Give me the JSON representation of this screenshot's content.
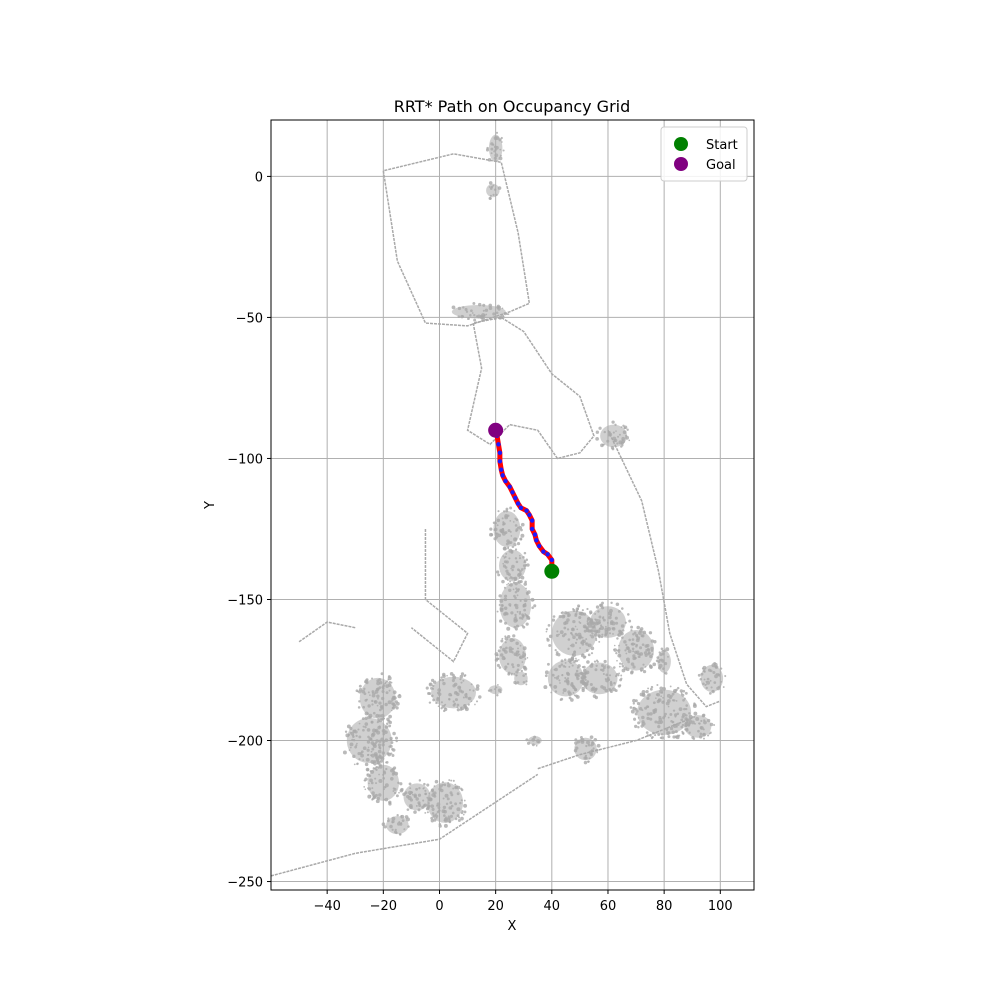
{
  "chart_data": {
    "type": "scatter",
    "title": "RRT* Path on Occupancy Grid",
    "xlabel": "X",
    "ylabel": "Y",
    "xlim": [
      -60,
      112
    ],
    "ylim": [
      -253,
      20
    ],
    "xticks": [
      -40,
      -20,
      0,
      20,
      40,
      60,
      80,
      100
    ],
    "yticks": [
      0,
      -50,
      -100,
      -150,
      -200,
      -250
    ],
    "grid": true,
    "legend_position": "top-right",
    "colors": {
      "obstacles": "#a9a9a9",
      "path_line": "#ff0000",
      "path_nodes": "#1a1aff",
      "start": "#008000",
      "goal": "#800080",
      "grid": "#b0b0b0"
    },
    "legend": [
      {
        "label": "Start",
        "color": "#008000"
      },
      {
        "label": "Goal",
        "color": "#800080"
      }
    ],
    "start": {
      "x": 40,
      "y": -140
    },
    "goal": {
      "x": 20,
      "y": -90
    },
    "path": [
      {
        "x": 40,
        "y": -140
      },
      {
        "x": 40,
        "y": -136
      },
      {
        "x": 38.5,
        "y": -134
      },
      {
        "x": 37,
        "y": -133
      },
      {
        "x": 35.5,
        "y": -131
      },
      {
        "x": 34.5,
        "y": -129
      },
      {
        "x": 34,
        "y": -127
      },
      {
        "x": 33,
        "y": -125
      },
      {
        "x": 33,
        "y": -122
      },
      {
        "x": 32,
        "y": -120
      },
      {
        "x": 31,
        "y": -118.5
      },
      {
        "x": 29,
        "y": -117.5
      },
      {
        "x": 28,
        "y": -116
      },
      {
        "x": 27,
        "y": -114
      },
      {
        "x": 26,
        "y": -112
      },
      {
        "x": 25,
        "y": -110
      },
      {
        "x": 23.5,
        "y": -108
      },
      {
        "x": 22.5,
        "y": -106
      },
      {
        "x": 22,
        "y": -104
      },
      {
        "x": 21.5,
        "y": -101
      },
      {
        "x": 21.5,
        "y": -98
      },
      {
        "x": 21,
        "y": -95
      },
      {
        "x": 20.5,
        "y": -92
      },
      {
        "x": 20,
        "y": -90
      }
    ],
    "obstacles": {
      "walls": [
        [
          [
            -20,
            2
          ],
          [
            -15,
            -30
          ],
          [
            -5,
            -52
          ],
          [
            10,
            -53
          ],
          [
            25,
            -48
          ],
          [
            32,
            -45
          ],
          [
            28,
            -20
          ],
          [
            22,
            5
          ],
          [
            5,
            8
          ],
          [
            -20,
            2
          ]
        ],
        [
          [
            12,
            -52
          ],
          [
            15,
            -68
          ],
          [
            10,
            -90
          ],
          [
            18,
            -95
          ],
          [
            25,
            -88
          ],
          [
            35,
            -90
          ],
          [
            42,
            -100
          ],
          [
            50,
            -98
          ],
          [
            55,
            -92
          ],
          [
            50,
            -78
          ],
          [
            40,
            -70
          ],
          [
            30,
            -55
          ],
          [
            22,
            -50
          ],
          [
            12,
            -52
          ]
        ],
        [
          [
            60,
            -90
          ],
          [
            72,
            -115
          ],
          [
            78,
            -140
          ],
          [
            82,
            -162
          ],
          [
            88,
            -180
          ],
          [
            95,
            -188
          ],
          [
            100,
            -186
          ]
        ],
        [
          [
            35,
            -210
          ],
          [
            50,
            -205
          ],
          [
            70,
            -200
          ],
          [
            90,
            -192
          ]
        ],
        [
          [
            -60,
            -248
          ],
          [
            -30,
            -240
          ],
          [
            0,
            -235
          ],
          [
            35,
            -212
          ]
        ],
        [
          [
            -5,
            -125
          ],
          [
            -5,
            -150
          ],
          [
            10,
            -162
          ],
          [
            5,
            -172
          ],
          [
            -10,
            -160
          ]
        ],
        [
          [
            -50,
            -165
          ],
          [
            -40,
            -158
          ],
          [
            -30,
            -160
          ]
        ]
      ],
      "clusters": [
        {
          "x": 24,
          "y": -125,
          "rx": 6,
          "ry": 8
        },
        {
          "x": 26,
          "y": -138,
          "rx": 6,
          "ry": 7
        },
        {
          "x": 27,
          "y": -152,
          "rx": 7,
          "ry": 10
        },
        {
          "x": 26,
          "y": -170,
          "rx": 6,
          "ry": 8
        },
        {
          "x": 48,
          "y": -162,
          "rx": 10,
          "ry": 10
        },
        {
          "x": 60,
          "y": -158,
          "rx": 8,
          "ry": 7
        },
        {
          "x": 70,
          "y": -168,
          "rx": 8,
          "ry": 9
        },
        {
          "x": 45,
          "y": -178,
          "rx": 8,
          "ry": 8
        },
        {
          "x": 57,
          "y": -178,
          "rx": 8,
          "ry": 7
        },
        {
          "x": 80,
          "y": -190,
          "rx": 12,
          "ry": 10
        },
        {
          "x": 92,
          "y": -195,
          "rx": 6,
          "ry": 5
        },
        {
          "x": 5,
          "y": -183,
          "rx": 10,
          "ry": 7
        },
        {
          "x": -22,
          "y": -185,
          "rx": 8,
          "ry": 9
        },
        {
          "x": -25,
          "y": -200,
          "rx": 10,
          "ry": 10
        },
        {
          "x": -20,
          "y": -215,
          "rx": 7,
          "ry": 8
        },
        {
          "x": -8,
          "y": -220,
          "rx": 6,
          "ry": 6
        },
        {
          "x": 2,
          "y": -222,
          "rx": 8,
          "ry": 9
        },
        {
          "x": -15,
          "y": -230,
          "rx": 5,
          "ry": 4
        },
        {
          "x": 52,
          "y": -203,
          "rx": 5,
          "ry": 5
        },
        {
          "x": 34,
          "y": -200,
          "rx": 3,
          "ry": 2
        },
        {
          "x": 29,
          "y": -178,
          "rx": 3,
          "ry": 3
        },
        {
          "x": 20,
          "y": -182,
          "rx": 3,
          "ry": 2
        },
        {
          "x": 62,
          "y": -92,
          "rx": 6,
          "ry": 5
        },
        {
          "x": 20,
          "y": 10,
          "rx": 3,
          "ry": 6
        },
        {
          "x": 19,
          "y": -5,
          "rx": 3,
          "ry": 3
        },
        {
          "x": 14,
          "y": -48,
          "rx": 12,
          "ry": 3
        },
        {
          "x": 97,
          "y": -178,
          "rx": 5,
          "ry": 6
        },
        {
          "x": 80,
          "y": -172,
          "rx": 3,
          "ry": 5
        }
      ]
    }
  }
}
